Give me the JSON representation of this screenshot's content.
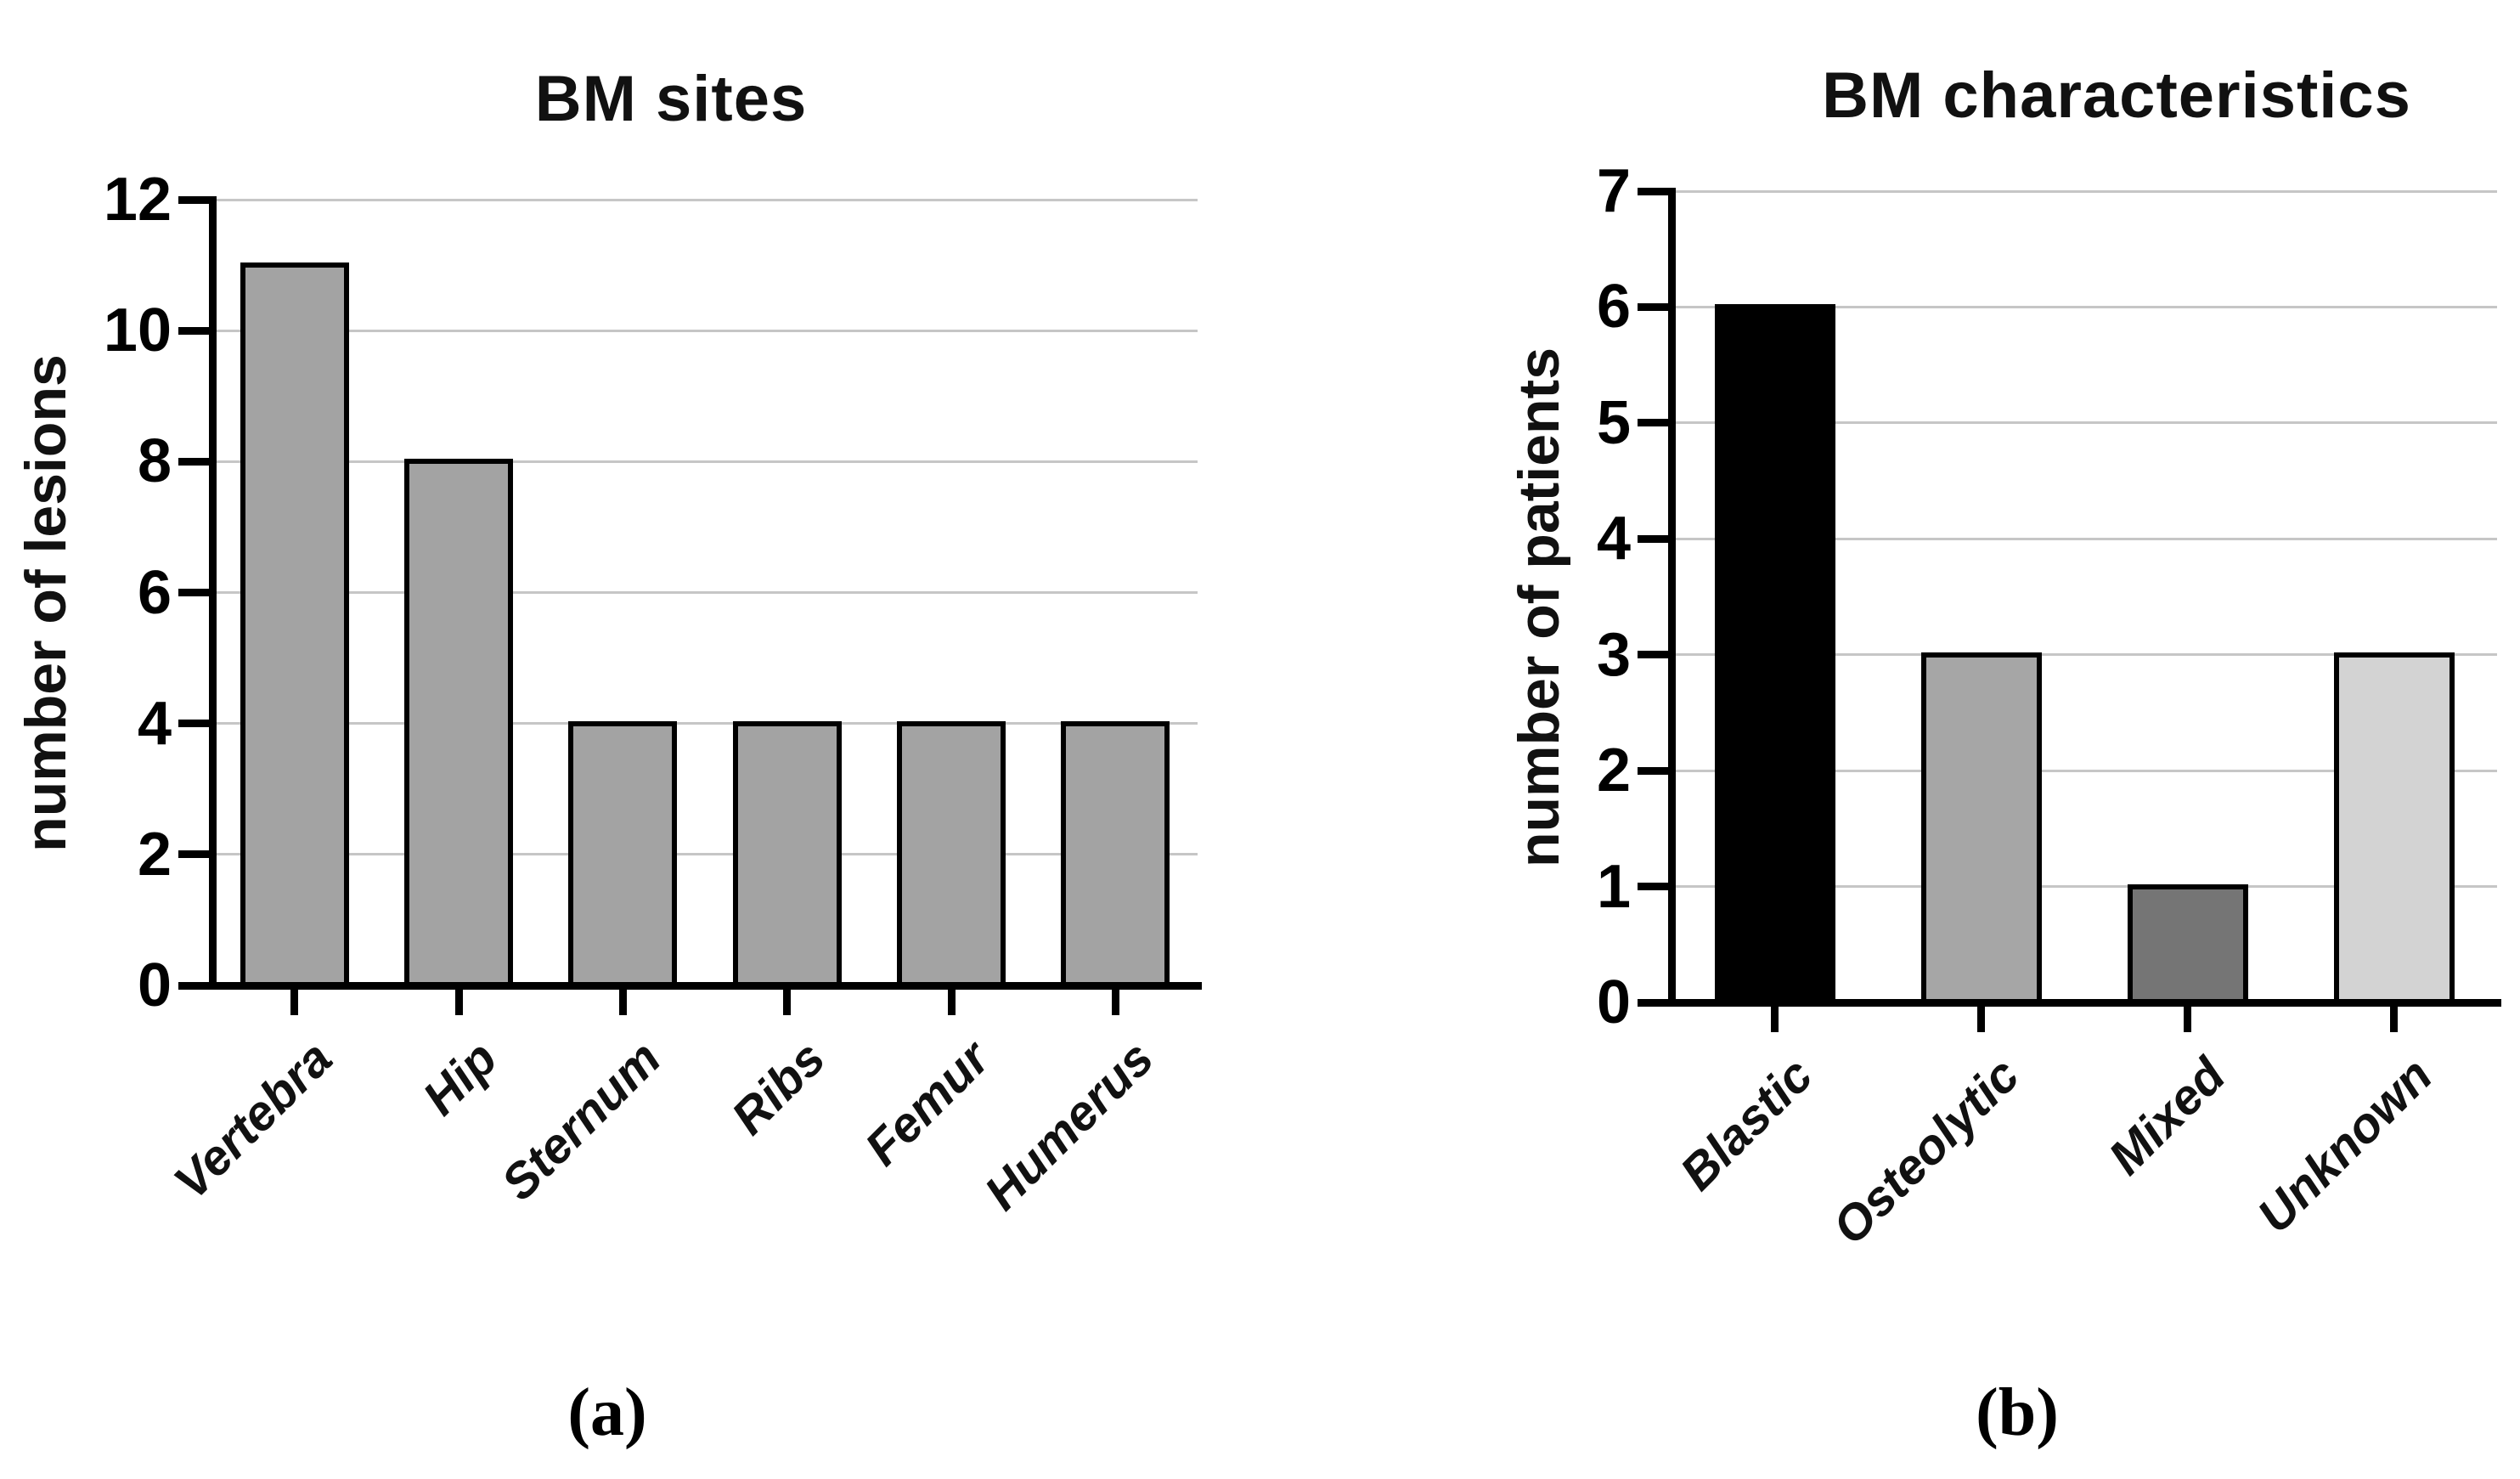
{
  "figure": {
    "background": "#ffffff",
    "panels": [
      {
        "caption": "(a)"
      },
      {
        "caption": "(b)"
      }
    ]
  },
  "colors": {
    "axis": "#000000",
    "gridline": "#c6c6c6",
    "title_text": "#111111"
  },
  "chart_data": [
    {
      "type": "bar",
      "title": "BM sites",
      "ylabel": "number of lesions",
      "xlabel": "",
      "categories": [
        "Vertebra",
        "Hip",
        "Sternum",
        "Ribs",
        "Femur",
        "Humerus"
      ],
      "values": [
        11,
        8,
        4,
        4,
        4,
        4
      ],
      "bar_colors": [
        "#a3a3a3",
        "#a3a3a3",
        "#a3a3a3",
        "#a3a3a3",
        "#a3a3a3",
        "#a3a3a3"
      ],
      "bar_outline_color": "#000000",
      "ylim": [
        0,
        12
      ],
      "ytick_step": 2,
      "grid": true,
      "legend": false
    },
    {
      "type": "bar",
      "title": "BM characteristics",
      "ylabel": "number of patients",
      "xlabel": "",
      "categories": [
        "Blastic",
        "Osteolytic",
        "Mixed",
        "Unknown"
      ],
      "values": [
        6,
        3,
        1,
        3
      ],
      "bar_colors": [
        "#000000",
        "#a6a6a6",
        "#757575",
        "#d3d3d3"
      ],
      "bar_outline_color": "#000000",
      "ylim": [
        0,
        7
      ],
      "ytick_step": 1,
      "grid": true,
      "legend": false
    }
  ]
}
